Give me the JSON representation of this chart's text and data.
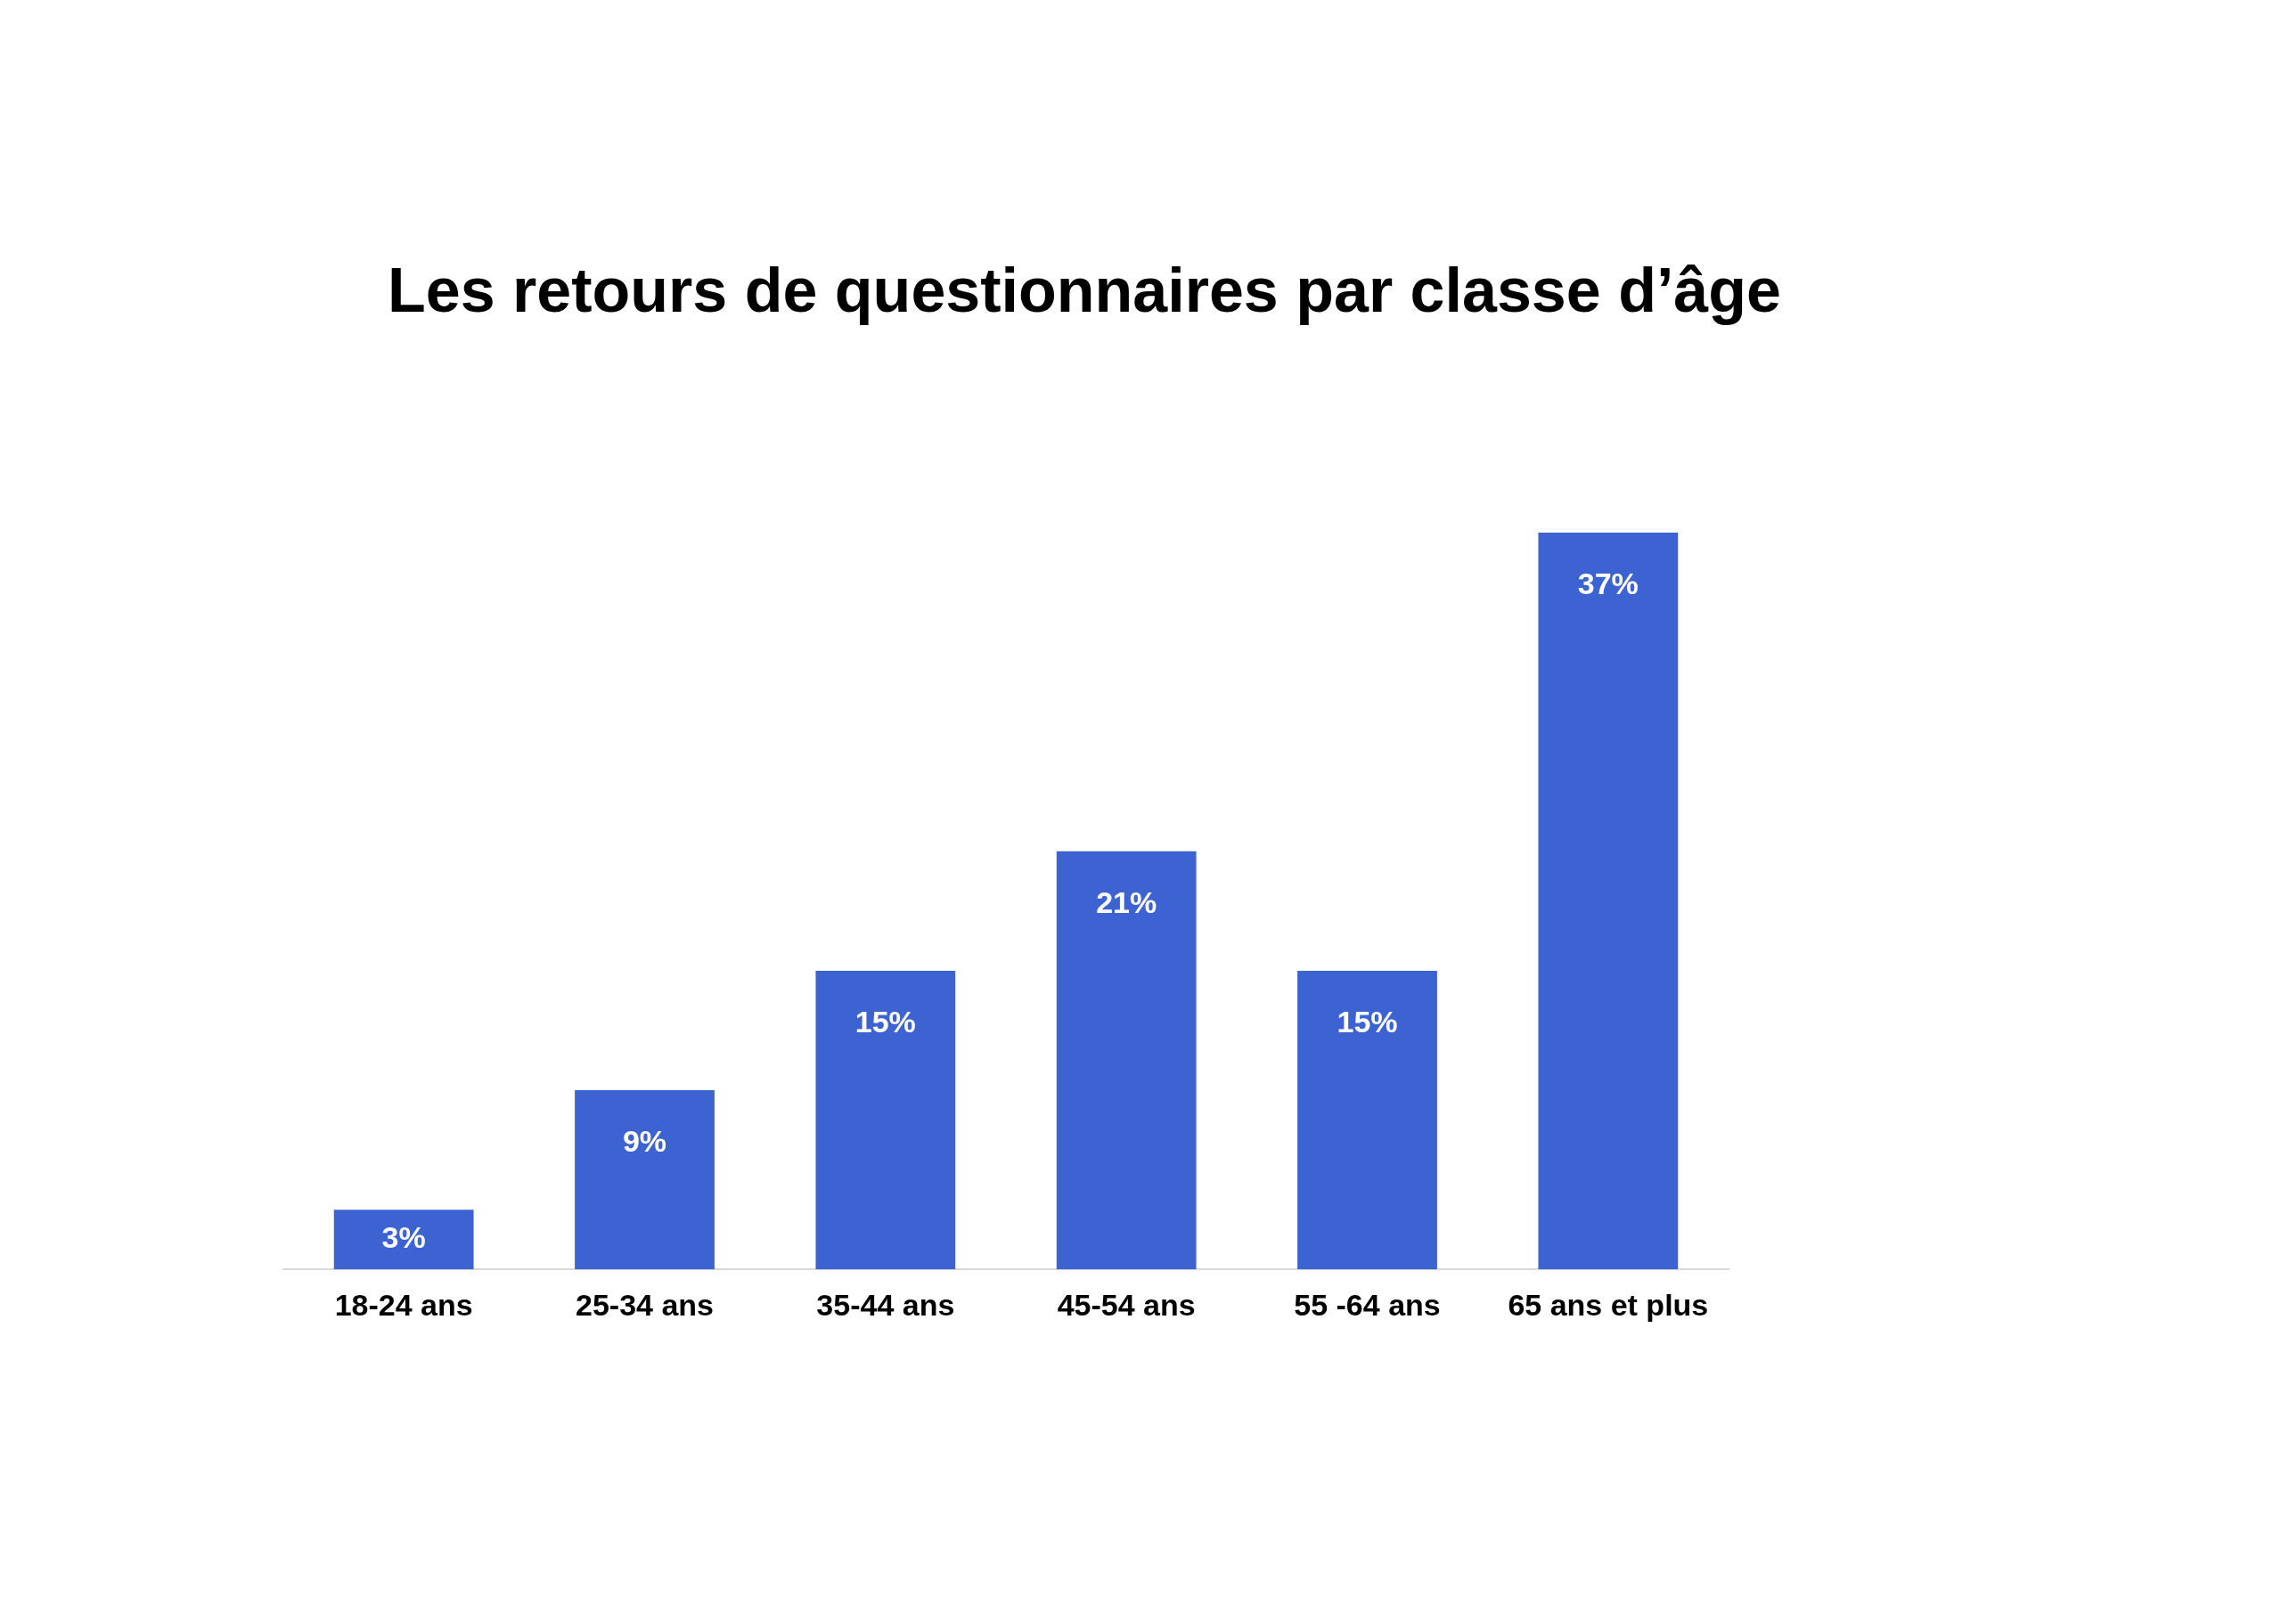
{
  "chart_data": {
    "type": "bar",
    "title": "Les retours de questionnaires par classe d’âge",
    "categories": [
      "18-24 ans",
      "25-34 ans",
      "35-44 ans",
      "45-54 ans",
      "55 -64 ans",
      "65 ans et plus"
    ],
    "values": [
      3,
      9,
      15,
      21,
      15,
      37
    ],
    "value_labels": [
      "3%",
      "9%",
      "15%",
      "21%",
      "15%",
      "37%"
    ],
    "color": "#3d63d3",
    "grid": false,
    "legend": false
  }
}
